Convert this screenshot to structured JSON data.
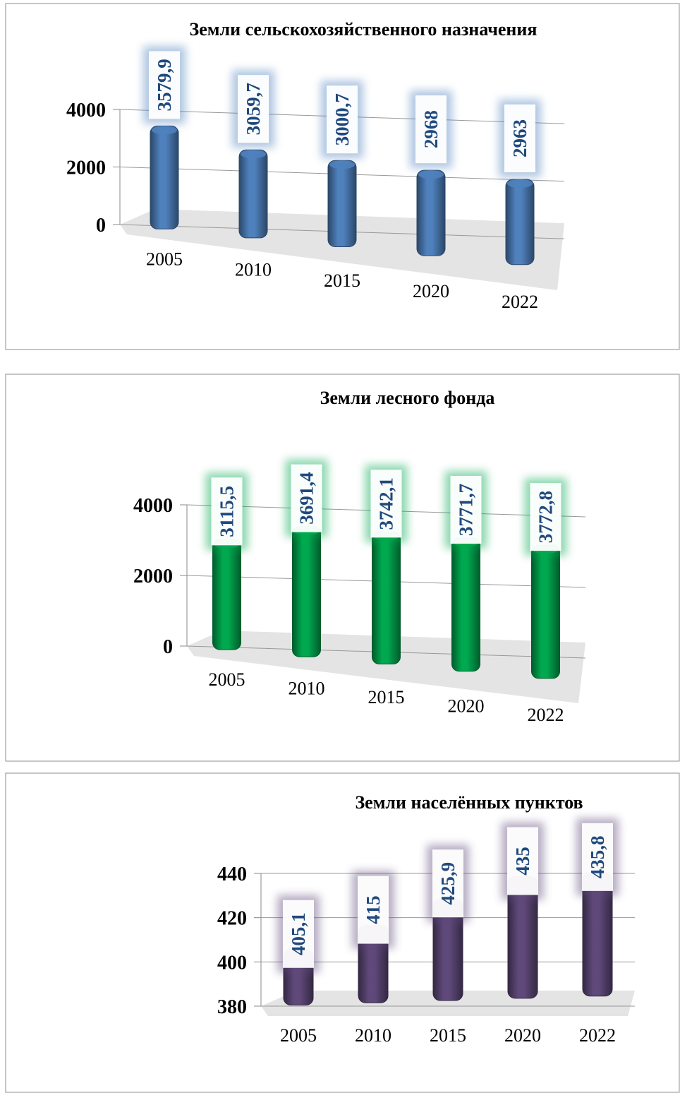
{
  "chart_data": [
    {
      "type": "bar",
      "title": "Земли сельскохозяйственного назначения",
      "categories": [
        "2005",
        "2010",
        "2015",
        "2020",
        "2022"
      ],
      "values": [
        3579.9,
        3059.7,
        3000.7,
        2968,
        2963
      ],
      "value_labels": [
        "3579,9",
        "3059,7",
        "3000,7",
        "2968",
        "2963"
      ],
      "color": "#4f81bd",
      "ylim": [
        0,
        4000
      ],
      "yticks": [
        0,
        2000,
        4000
      ],
      "grid": true
    },
    {
      "type": "bar",
      "title": "Земли лесного фонда",
      "categories": [
        "2005",
        "2010",
        "2015",
        "2020",
        "2022"
      ],
      "values": [
        3115.5,
        3691.4,
        3742.1,
        3771.7,
        3772.8
      ],
      "value_labels": [
        "3115,5",
        "3691,4",
        "3742,1",
        "3771,7",
        "3772,8"
      ],
      "color": "#00a84f",
      "ylim": [
        0,
        4000
      ],
      "yticks": [
        0,
        2000,
        4000
      ],
      "grid": true
    },
    {
      "type": "bar",
      "title": "Земли населённых пунктов",
      "categories": [
        "2005",
        "2010",
        "2015",
        "2020",
        "2022"
      ],
      "values": [
        405.1,
        415,
        425.9,
        435,
        435.8
      ],
      "value_labels": [
        "405,1",
        "415",
        "425,9",
        "435",
        "435,8"
      ],
      "color": "#5f497a",
      "ylim": [
        380,
        440
      ],
      "yticks": [
        380,
        400,
        420,
        440
      ],
      "grid": true
    }
  ]
}
